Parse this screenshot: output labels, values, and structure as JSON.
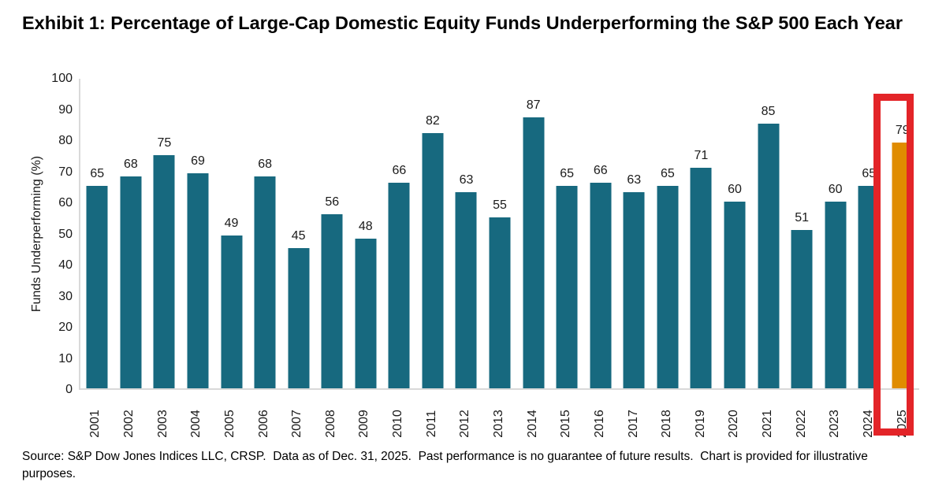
{
  "title": "Exhibit 1: Percentage of Large-Cap Domestic Equity Funds Underperforming the S&P 500 Each Year",
  "source_note": "Source: S&P Dow Jones Indices LLC, CRSP.  Data as of Dec. 31, 2025.  Past performance is no guarantee of future results.  Chart is provided for illustrative purposes.",
  "chart_data": {
    "type": "bar",
    "title": "Exhibit 1: Percentage of Large-Cap Domestic Equity Funds Underperforming the S&P 500 Each Year",
    "categories": [
      "2001",
      "2002",
      "2003",
      "2004",
      "2005",
      "2006",
      "2007",
      "2008",
      "2009",
      "2010",
      "2011",
      "2012",
      "2013",
      "2014",
      "2015",
      "2016",
      "2017",
      "2018",
      "2019",
      "2020",
      "2021",
      "2022",
      "2023",
      "2024",
      "2025"
    ],
    "values": [
      65,
      68,
      75,
      69,
      49,
      68,
      45,
      56,
      48,
      66,
      82,
      63,
      55,
      87,
      65,
      66,
      63,
      65,
      71,
      60,
      85,
      51,
      60,
      65,
      79
    ],
    "xlabel": "",
    "ylabel": "Funds Underperforming (%)",
    "ylim": [
      0,
      100
    ],
    "yticks": [
      0,
      10,
      20,
      30,
      40,
      50,
      60,
      70,
      80,
      90,
      100
    ],
    "grid": false,
    "legend": "none",
    "data_labels": true,
    "bar_color": "#17697f",
    "highlight_index": 24,
    "highlight_bar_color": "#e08c00",
    "highlight_box_color": "#e32428",
    "axis_line_color": "#d9d9d9"
  }
}
